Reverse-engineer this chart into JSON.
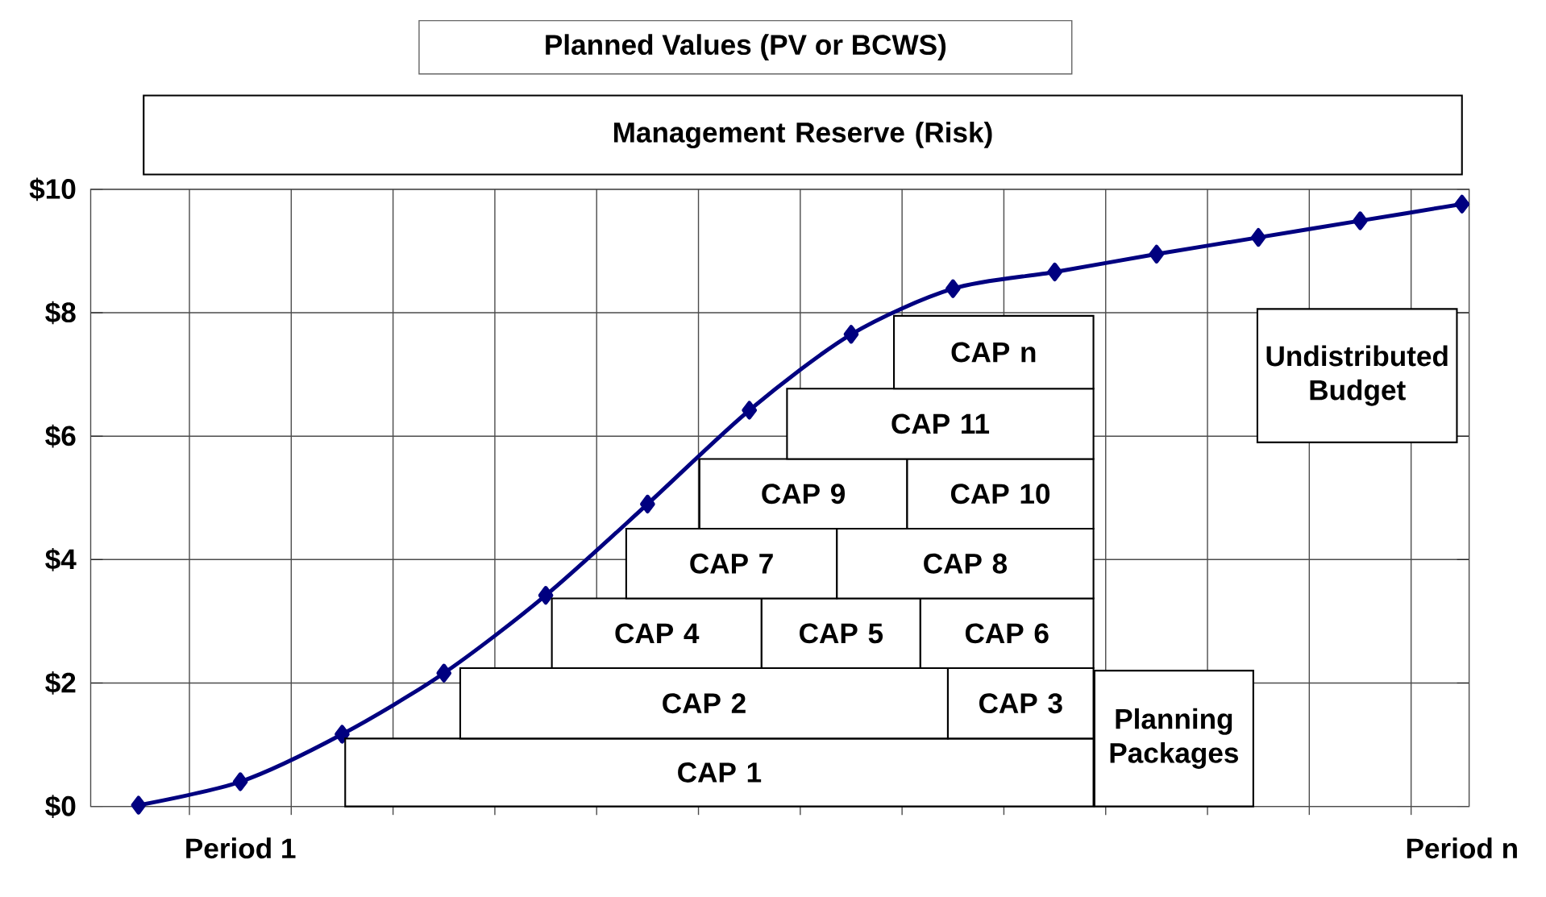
{
  "chart_data": {
    "type": "line",
    "title": "Planned Values (PV or BCWS)",
    "categories": [
      null,
      "Period 1",
      null,
      null,
      null,
      null,
      null,
      null,
      null,
      null,
      null,
      null,
      null,
      "Period n"
    ],
    "series": [
      {
        "color": "#000080",
        "values": [
          0.02,
          0.4,
          1.17,
          2.16,
          3.42,
          4.9,
          6.42,
          7.65,
          8.39,
          8.66,
          8.95,
          9.22,
          9.49,
          9.76
        ]
      }
    ],
    "ylim": [
      0,
      10
    ],
    "yticks": [
      {
        "value": 0,
        "label": "$0"
      },
      {
        "value": 2,
        "label": "$2"
      },
      {
        "value": 4,
        "label": "$4"
      },
      {
        "value": 6,
        "label": "$6"
      },
      {
        "value": 8,
        "label": "$8"
      },
      {
        "value": 10,
        "label": "$10"
      }
    ],
    "grid": true,
    "marker": "diamond",
    "line_style": "solid",
    "annotations": [
      "Management Reserve (Risk)",
      "CAP 1",
      "CAP 2",
      "CAP 3",
      "CAP 4",
      "CAP 5",
      "CAP 6",
      "CAP 7",
      "CAP 8",
      "CAP 9",
      "CAP 10",
      "CAP 11",
      "CAP n",
      "Planning Packages",
      "Undistributed Budget"
    ]
  }
}
